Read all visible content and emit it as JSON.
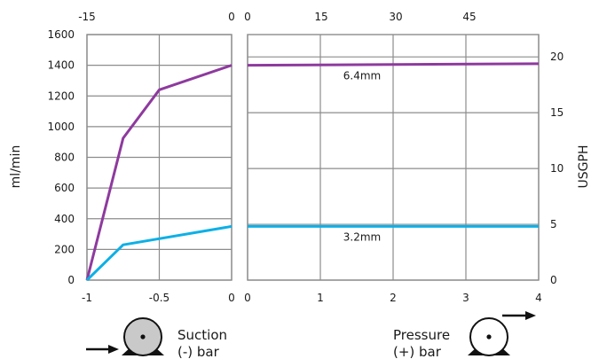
{
  "chart_data": {
    "type": "line",
    "colors": {
      "series_large": "#8e3a9e",
      "series_small": "#0db0e6",
      "grid": "#8c8c8c",
      "text": "#1a1a1a"
    },
    "y_left": {
      "label": "ml/min",
      "range": [
        0,
        1600
      ],
      "ticks": [
        "0",
        "200",
        "400",
        "600",
        "800",
        "1000",
        "1200",
        "1400",
        "1600"
      ]
    },
    "y_right": {
      "label": "USGPH",
      "range": [
        0,
        22.0
      ],
      "ticks": [
        "0",
        "5",
        "10",
        "15",
        "20"
      ]
    },
    "suction_panel": {
      "x_range": [
        -1,
        0
      ],
      "x_ticks_bottom": [
        "-1",
        "-0.5",
        "0"
      ],
      "x_ticks_top": [
        "-15",
        "0"
      ],
      "caption_line1": "Suction",
      "caption_line2": "(-) bar",
      "series": [
        {
          "key": "large",
          "x": [
            -1,
            -0.75,
            -0.5,
            0
          ],
          "y": [
            0,
            925,
            1240,
            1400
          ]
        },
        {
          "key": "small",
          "x": [
            -1,
            -0.75,
            0
          ],
          "y": [
            0,
            230,
            350
          ]
        }
      ]
    },
    "pressure_panel": {
      "x_range": [
        0,
        4
      ],
      "x_ticks_bottom": [
        "0",
        "1",
        "2",
        "3",
        "4"
      ],
      "x_ticks_top": [
        "0",
        "15",
        "30",
        "45"
      ],
      "caption_line1": "Pressure",
      "caption_line2": "(+) bar",
      "series": [
        {
          "key": "large",
          "name": "6.4mm",
          "x": [
            0,
            4
          ],
          "y": [
            1400,
            1410
          ]
        },
        {
          "key": "small",
          "name": "3.2mm",
          "x": [
            0,
            4
          ],
          "y": [
            350,
            350
          ]
        }
      ]
    }
  }
}
